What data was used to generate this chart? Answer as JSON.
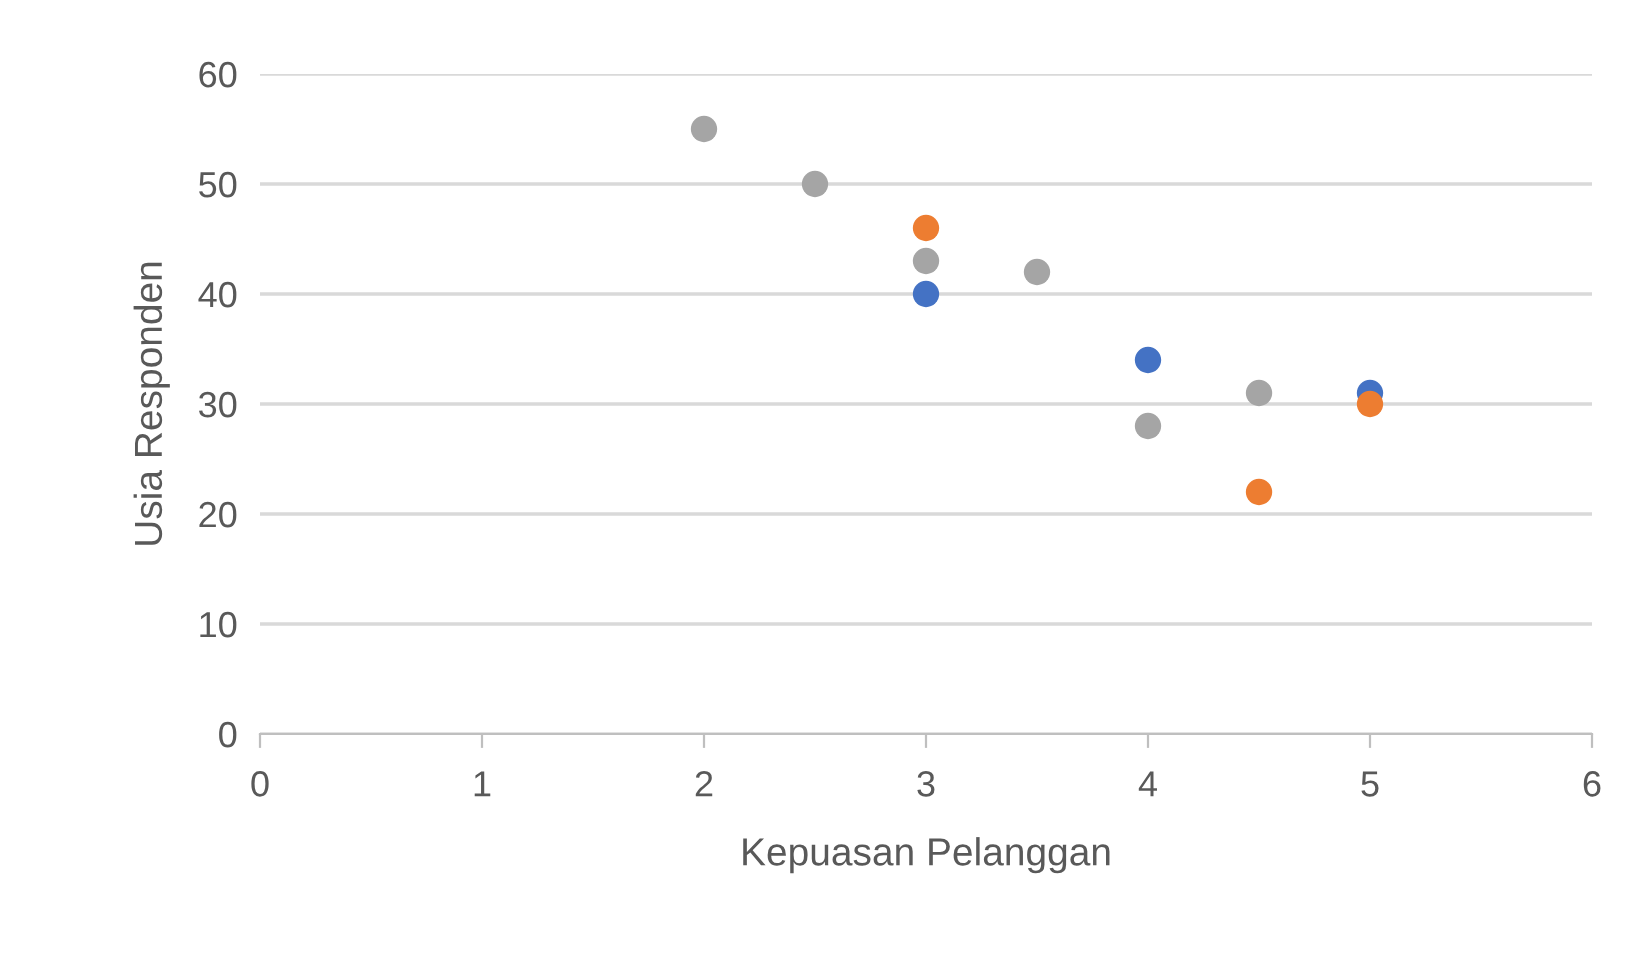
{
  "chart_data": {
    "type": "scatter",
    "xlabel": "Kepuasan Pelanggan",
    "ylabel": "Usia Responden",
    "xlim": [
      0,
      6
    ],
    "xticks": [
      0,
      1,
      2,
      3,
      4,
      5,
      6
    ],
    "ylim": [
      0,
      60
    ],
    "yticks": [
      0,
      10,
      20,
      30,
      40,
      50,
      60
    ],
    "grid": "y",
    "marker": "circle",
    "series": [
      {
        "color": "#4472c4",
        "x": [
          3,
          4,
          5
        ],
        "values": [
          40,
          34,
          31
        ]
      },
      {
        "color": "#ed7d31",
        "x": [
          3,
          4.5,
          5
        ],
        "values": [
          46,
          22,
          30
        ]
      },
      {
        "color": "#a5a5a5",
        "x": [
          2,
          2.5,
          3,
          3.5,
          4,
          4.5
        ],
        "values": [
          55,
          50,
          43,
          42,
          28,
          31
        ]
      }
    ]
  }
}
